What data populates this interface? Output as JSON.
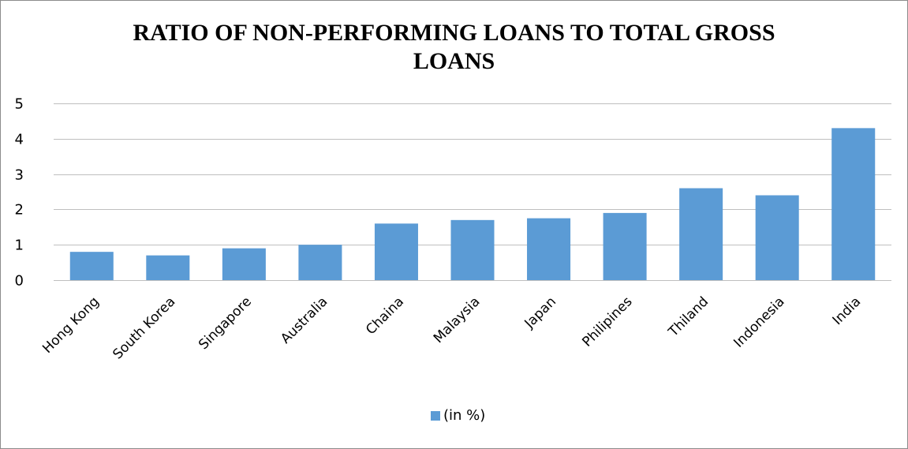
{
  "chart_data": {
    "type": "bar",
    "title_lines": [
      "RATIO OF NON-PERFORMING LOANS TO TOTAL GROSS",
      "LOANS"
    ],
    "categories": [
      "Hong Kong",
      "South Korea",
      "Singapore",
      "Australia",
      "Chaina",
      "Malaysia",
      "Japan",
      "Philipines",
      "Thiland",
      "Indonesia",
      "India"
    ],
    "series": [
      {
        "name": "(in %)",
        "values": [
          0.8,
          0.7,
          0.9,
          1.0,
          1.6,
          1.7,
          1.75,
          1.9,
          2.6,
          2.4,
          4.3
        ]
      }
    ],
    "ylim": [
      0,
      5
    ],
    "yticks": [
      0,
      1,
      2,
      3,
      4,
      5
    ],
    "grid": true,
    "legend_position": "bottom",
    "colors": {
      "bar": "#5B9BD5",
      "grid": "#bfbfbf",
      "axis": "#bfbfbf"
    }
  }
}
